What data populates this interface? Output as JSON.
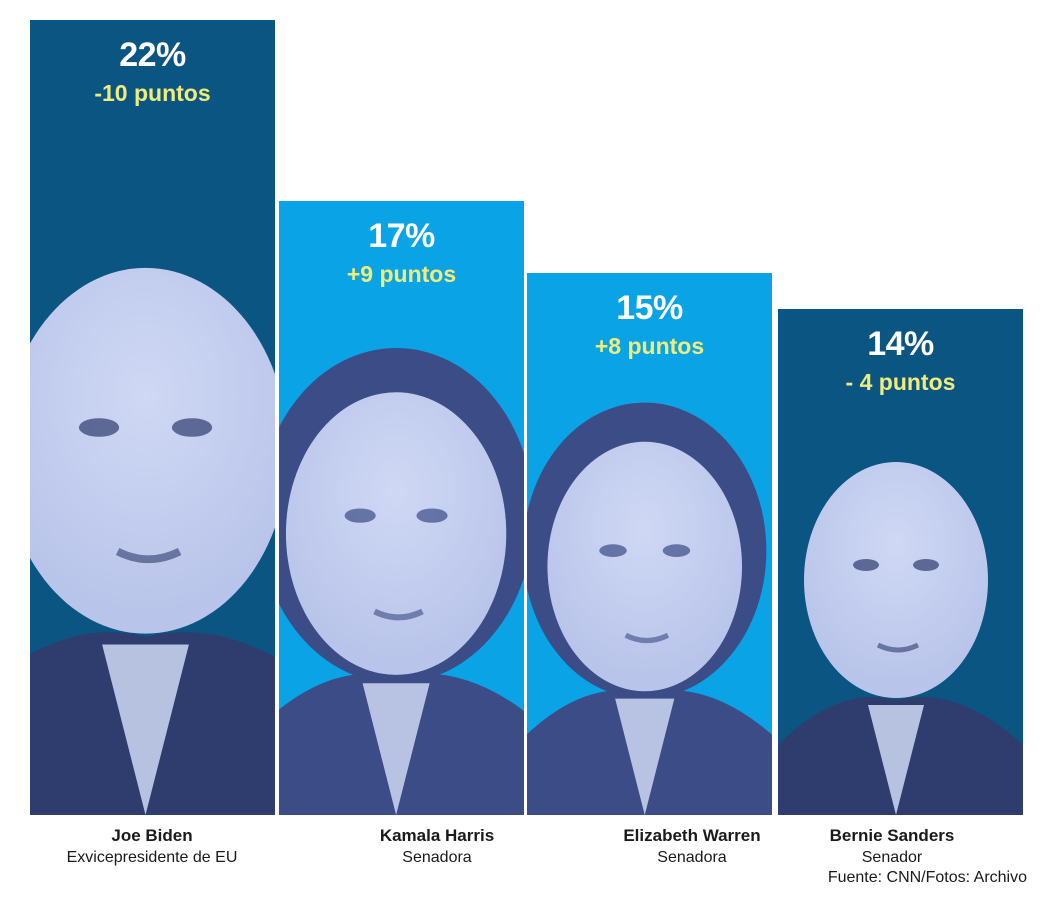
{
  "chart_data": {
    "type": "bar",
    "categories": [
      "Joe Biden",
      "Kamala Harris",
      "Elizabeth Warren",
      "Bernie Sanders"
    ],
    "values": [
      22,
      17,
      15,
      14
    ],
    "value_labels": [
      "22%",
      "17%",
      "15%",
      "14%"
    ],
    "changes": [
      "-10 puntos",
      "+9 puntos",
      "+8 puntos",
      "- 4 puntos"
    ],
    "roles": [
      "Exvicepresidente de EU",
      "Senadora",
      "Senadora",
      "Senador"
    ],
    "title": "",
    "xlabel": "",
    "ylabel": "",
    "ylim": [
      0,
      22
    ],
    "grid": false,
    "bar_colors": [
      "#0b5583",
      "#0aa4e6",
      "#0aa4e6",
      "#0b5583"
    ],
    "icons": [
      "portrait-icon",
      "portrait-icon",
      "portrait-icon",
      "portrait-icon"
    ]
  },
  "source": "Fuente: CNN/Fotos: Archivo"
}
